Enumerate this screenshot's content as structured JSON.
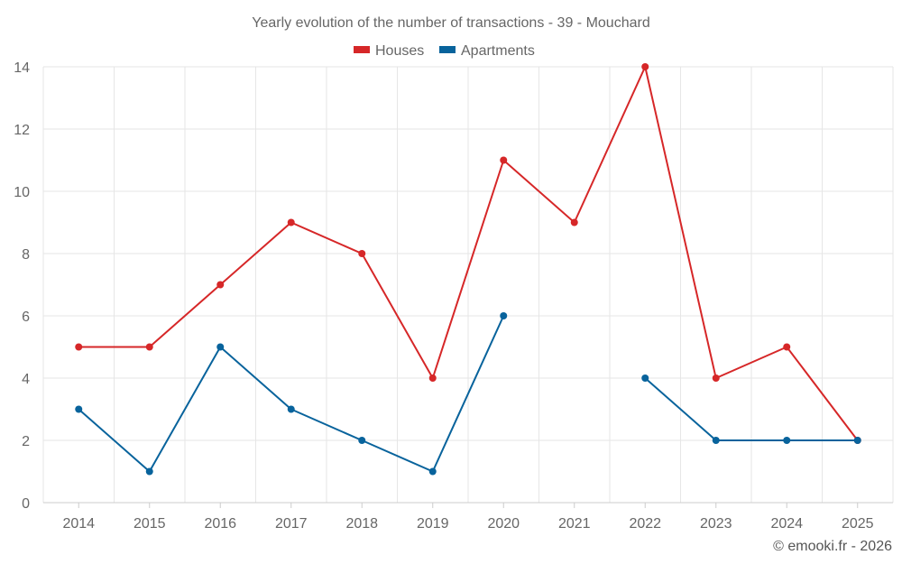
{
  "chart_data": {
    "type": "line",
    "title": "Yearly evolution of the number of transactions - 39 - Mouchard",
    "categories": [
      "2014",
      "2015",
      "2016",
      "2017",
      "2018",
      "2019",
      "2020",
      "2021",
      "2022",
      "2023",
      "2024",
      "2025"
    ],
    "ylim": [
      0,
      14
    ],
    "yticks": [
      0,
      2,
      4,
      6,
      8,
      10,
      12,
      14
    ],
    "grid": true,
    "legend_position": "top-center",
    "xlabel": "",
    "ylabel": "",
    "series": [
      {
        "name": "Houses",
        "color": "#d62728",
        "values": [
          5,
          5,
          7,
          9,
          8,
          4,
          11,
          9,
          14,
          4,
          5,
          2
        ]
      },
      {
        "name": "Apartments",
        "color": "#08639c",
        "values": [
          3,
          1,
          5,
          3,
          2,
          1,
          6,
          null,
          4,
          2,
          2,
          2
        ]
      }
    ]
  },
  "credit": "© emooki.fr - 2026"
}
